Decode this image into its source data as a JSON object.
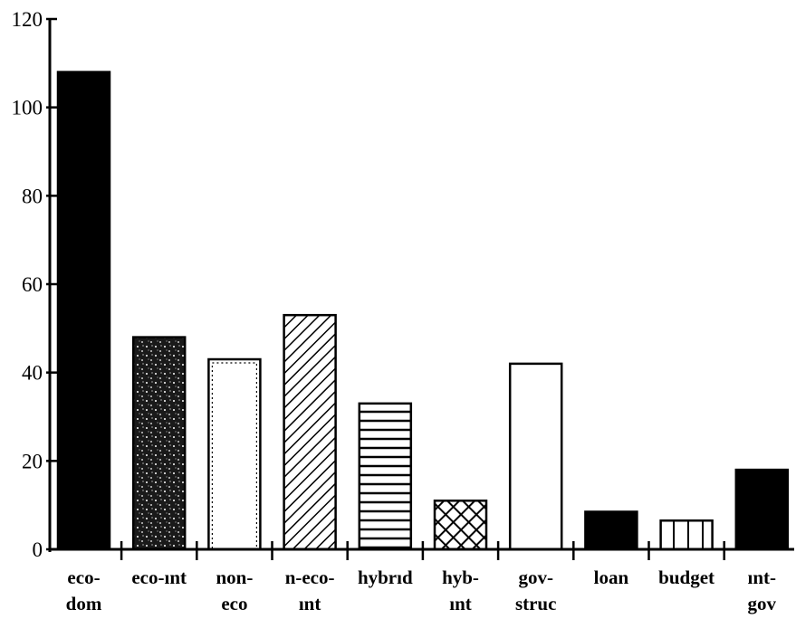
{
  "chart_data": {
    "type": "bar",
    "title": "",
    "xlabel": "",
    "ylabel": "",
    "ylim": [
      0,
      120
    ],
    "yticks": [
      "0",
      "20",
      "40",
      "60",
      "80",
      "100",
      "120"
    ],
    "grid": false,
    "legend": "none",
    "categories": [
      {
        "line1": "eco-",
        "line2": "dom"
      },
      {
        "line1": "eco-ınt",
        "line2": ""
      },
      {
        "line1": "non-",
        "line2": "eco"
      },
      {
        "line1": "n-eco-",
        "line2": "ınt"
      },
      {
        "line1": "hybrıd",
        "line2": ""
      },
      {
        "line1": "hyb-",
        "line2": "ınt"
      },
      {
        "line1": "gov-",
        "line2": "struc"
      },
      {
        "line1": "loan",
        "line2": ""
      },
      {
        "line1": "budget",
        "line2": ""
      },
      {
        "line1": "ınt-",
        "line2": "gov"
      }
    ],
    "values": [
      108,
      48,
      43,
      53,
      33,
      11,
      42,
      8.5,
      6.5,
      18
    ],
    "patterns": [
      "solid-black",
      "speckle",
      "dotted-outline",
      "diagonal-hatch",
      "horizontal-lines",
      "crosshatch",
      "empty",
      "solid-black",
      "vertical-lines",
      "solid-black"
    ]
  }
}
